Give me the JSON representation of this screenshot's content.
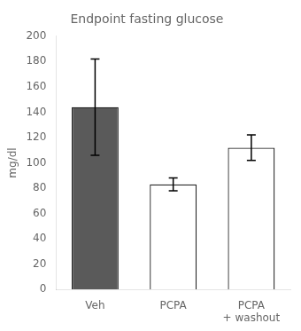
{
  "chart_data": {
    "type": "bar",
    "title": "Endpoint fasting glucose",
    "categories": [
      "Veh",
      "PCPA",
      "PCPA\n+ washout"
    ],
    "values": [
      144,
      83,
      112
    ],
    "errors": [
      38,
      5,
      10
    ],
    "colors": [
      "#5a5a5a",
      "#ffffff",
      "#ffffff"
    ],
    "ylabel": "mg/dl",
    "ylim": [
      0,
      200
    ],
    "yticks": [
      0,
      20,
      40,
      60,
      80,
      100,
      120,
      140,
      160,
      180,
      200
    ],
    "grid": false
  }
}
